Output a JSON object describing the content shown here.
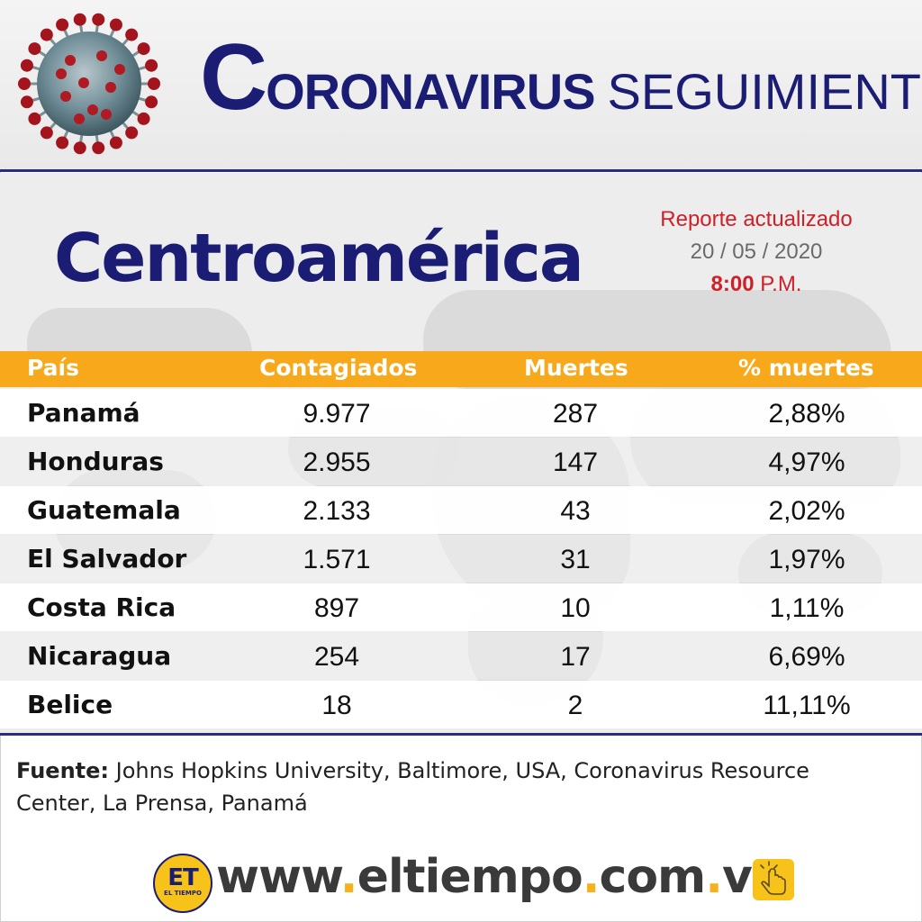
{
  "header": {
    "title_cap": "C",
    "title_rest": "ORONAVIRUS",
    "title_light": "SEGUIMIENTO"
  },
  "region": "Centroamérica",
  "report": {
    "label": "Reporte actualizado",
    "date": "20 / 05 / 2020",
    "time": "8:00",
    "period": "P.M."
  },
  "table": {
    "headers": [
      "País",
      "Contagiados",
      "Muertes",
      "% muertes"
    ],
    "rows": [
      {
        "country": "Panamá",
        "cases": "9.977",
        "deaths": "287",
        "pct": "2,88%"
      },
      {
        "country": "Honduras",
        "cases": "2.955",
        "deaths": "147",
        "pct": "4,97%"
      },
      {
        "country": "Guatemala",
        "cases": "2.133",
        "deaths": "43",
        "pct": "2,02%"
      },
      {
        "country": "El Salvador",
        "cases": "1.571",
        "deaths": "31",
        "pct": "1,97%"
      },
      {
        "country": "Costa Rica",
        "cases": "897",
        "deaths": "10",
        "pct": "1,11%"
      },
      {
        "country": "Nicaragua",
        "cases": "254",
        "deaths": "17",
        "pct": "6,69%"
      },
      {
        "country": "Belice",
        "cases": "18",
        "deaths": "2",
        "pct": "11,11%"
      }
    ]
  },
  "source": {
    "label": "Fuente:",
    "text": "Johns Hopkins University, Baltimore, USA, Coronavirus Resource Center, La Prensa, Panamá"
  },
  "footer": {
    "logo_text": "ET",
    "logo_sub": "EL TIEMPO",
    "url_www": "www",
    "url_dot1": ".",
    "url_site": "eltiempo",
    "url_dot2": ".",
    "url_com": "com",
    "url_dot3": ".",
    "url_ve": "ve"
  },
  "colors": {
    "navy": "#1b1d74",
    "orange": "#f7a81b",
    "red": "#d01f26"
  },
  "icons": [
    "coronavirus-icon",
    "world-map-background",
    "et-logo",
    "hand-pointer-icon"
  ]
}
